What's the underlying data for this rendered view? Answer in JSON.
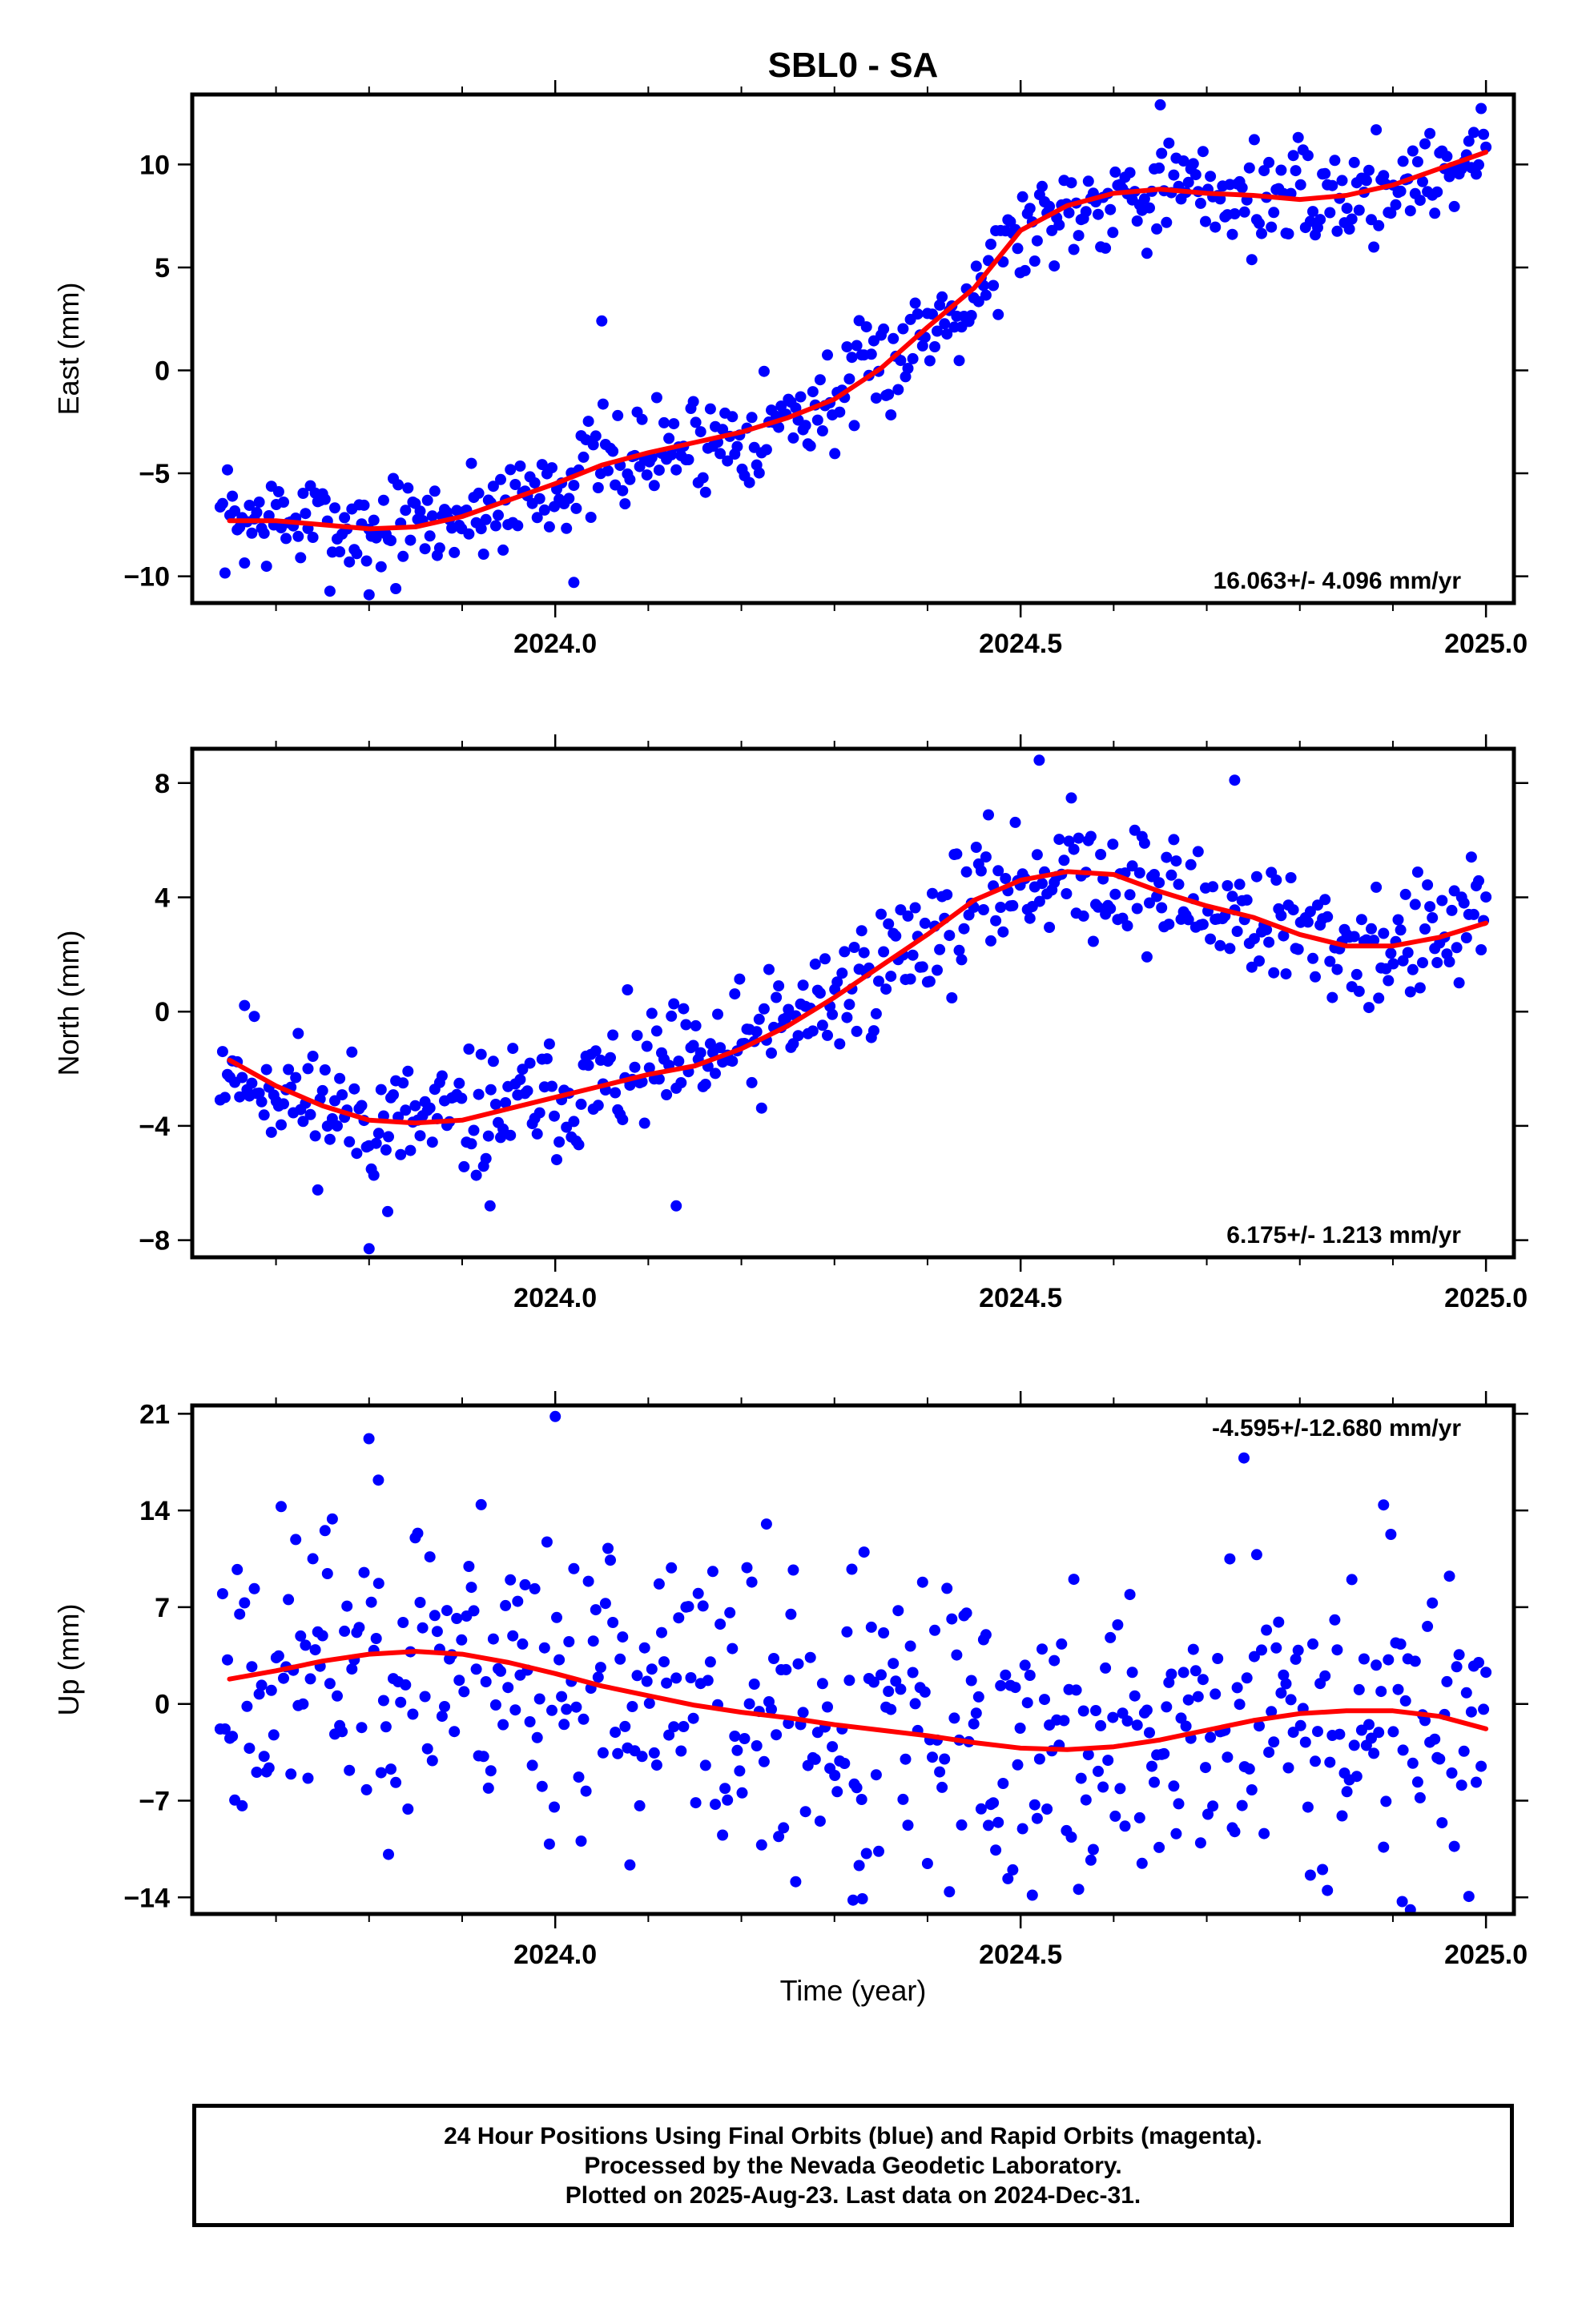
{
  "colors": {
    "final_orbits": "#0000ff",
    "rapid_orbits": "#ff00ff",
    "model_curve": "#ff0000",
    "frame": "#000000",
    "background": "#ffffff"
  },
  "chart_data": [
    {
      "type": "scatter",
      "title": "SBL0 - SA",
      "xlabel": "",
      "ylabel": "East (mm)",
      "unit": "mm",
      "xlim": [
        2023.61,
        2025.03
      ],
      "ylim": [
        -11.3,
        13.4
      ],
      "xticks": [
        "2024.0",
        "2024.5",
        "2025.0"
      ],
      "xtick_values": [
        2024.0,
        2024.5,
        2025.0
      ],
      "yticks": [
        "−10",
        "−5",
        "0",
        "5",
        "10"
      ],
      "ytick_values": [
        -10,
        -5,
        0,
        5,
        10
      ],
      "grid": false,
      "rate_text": "16.063+/- 4.096 mm/yr",
      "rate_position": "bottom-right",
      "model_curve": {
        "x": [
          2023.65,
          2023.7,
          2023.75,
          2023.8,
          2023.85,
          2023.9,
          2023.95,
          2024.0,
          2024.05,
          2024.1,
          2024.15,
          2024.2,
          2024.25,
          2024.3,
          2024.35,
          2024.4,
          2024.45,
          2024.5,
          2024.55,
          2024.6,
          2024.65,
          2024.7,
          2024.75,
          2024.8,
          2024.85,
          2024.9,
          2024.95,
          2025.0
        ],
        "y": [
          -7.3,
          -7.3,
          -7.5,
          -7.7,
          -7.6,
          -7.1,
          -6.3,
          -5.5,
          -4.6,
          -4.0,
          -3.5,
          -3.0,
          -2.3,
          -1.4,
          0.1,
          2.1,
          4.0,
          6.8,
          8.0,
          8.6,
          8.8,
          8.6,
          8.5,
          8.3,
          8.5,
          9.0,
          9.8,
          10.6
        ]
      },
      "points": {
        "n": 520,
        "seed": 7,
        "spread": 1.25,
        "outliers": [
          [
            2023.8,
            -10.9
          ],
          [
            2024.02,
            -10.3
          ],
          [
            2024.05,
            2.4
          ],
          [
            2024.65,
            12.9
          ]
        ]
      }
    },
    {
      "type": "scatter",
      "title": "",
      "xlabel": "",
      "ylabel": "North (mm)",
      "unit": "mm",
      "xlim": [
        2023.61,
        2025.03
      ],
      "ylim": [
        -8.6,
        9.2
      ],
      "xticks": [
        "2024.0",
        "2024.5",
        "2025.0"
      ],
      "xtick_values": [
        2024.0,
        2024.5,
        2025.0
      ],
      "yticks": [
        "−8",
        "−4",
        "0",
        "4",
        "8"
      ],
      "ytick_values": [
        -8,
        -4,
        0,
        4,
        8
      ],
      "grid": false,
      "rate_text": "6.175+/- 1.213 mm/yr",
      "rate_position": "bottom-right",
      "model_curve": {
        "x": [
          2023.65,
          2023.7,
          2023.75,
          2023.8,
          2023.85,
          2023.9,
          2023.95,
          2024.0,
          2024.05,
          2024.1,
          2024.15,
          2024.2,
          2024.25,
          2024.3,
          2024.35,
          2024.4,
          2024.45,
          2024.5,
          2024.55,
          2024.6,
          2024.65,
          2024.7,
          2024.75,
          2024.8,
          2024.85,
          2024.9,
          2024.95,
          2025.0
        ],
        "y": [
          -1.7,
          -2.6,
          -3.3,
          -3.8,
          -3.9,
          -3.8,
          -3.4,
          -3.0,
          -2.6,
          -2.2,
          -1.9,
          -1.3,
          -0.5,
          0.5,
          1.6,
          2.7,
          3.9,
          4.6,
          4.9,
          4.8,
          4.2,
          3.7,
          3.3,
          2.7,
          2.3,
          2.3,
          2.6,
          3.1
        ]
      },
      "points": {
        "n": 520,
        "seed": 11,
        "spread": 1.1,
        "outliers": [
          [
            2023.8,
            -8.3
          ],
          [
            2023.82,
            -7.0
          ],
          [
            2023.93,
            -6.8
          ],
          [
            2024.13,
            -6.8
          ],
          [
            2024.52,
            8.8
          ],
          [
            2024.73,
            8.1
          ]
        ]
      }
    },
    {
      "type": "scatter",
      "title": "",
      "xlabel": "Time (year)",
      "ylabel": "Up (mm)",
      "unit": "mm",
      "xlim": [
        2023.61,
        2025.03
      ],
      "ylim": [
        -15.2,
        21.6
      ],
      "xticks": [
        "2024.0",
        "2024.5",
        "2025.0"
      ],
      "xtick_values": [
        2024.0,
        2024.5,
        2025.0
      ],
      "yticks": [
        "−14",
        "−7",
        "0",
        "7",
        "14",
        "21"
      ],
      "ytick_values": [
        -14,
        -7,
        0,
        7,
        14,
        21
      ],
      "grid": false,
      "rate_text": "-4.595+/-12.680 mm/yr",
      "rate_position": "top-right",
      "model_curve": {
        "x": [
          2023.65,
          2023.7,
          2023.75,
          2023.8,
          2023.85,
          2023.9,
          2023.95,
          2024.0,
          2024.05,
          2024.1,
          2024.15,
          2024.2,
          2024.25,
          2024.3,
          2024.35,
          2024.4,
          2024.45,
          2024.5,
          2024.55,
          2024.6,
          2024.65,
          2024.7,
          2024.75,
          2024.8,
          2024.85,
          2024.9,
          2024.95,
          2025.0
        ],
        "y": [
          1.8,
          2.4,
          3.1,
          3.6,
          3.8,
          3.6,
          3.0,
          2.2,
          1.3,
          0.6,
          -0.1,
          -0.6,
          -1.0,
          -1.5,
          -1.9,
          -2.3,
          -2.8,
          -3.2,
          -3.3,
          -3.1,
          -2.6,
          -1.9,
          -1.2,
          -0.7,
          -0.5,
          -0.5,
          -0.9,
          -1.8
        ]
      },
      "points": {
        "n": 520,
        "seed": 23,
        "spread": 5.6,
        "outliers": [
          [
            2024.0,
            20.8
          ],
          [
            2024.74,
            17.8
          ],
          [
            2023.81,
            16.2
          ],
          [
            2024.89,
            14.4
          ],
          [
            2024.32,
            -14.2
          ],
          [
            2024.33,
            -14.1
          ],
          [
            2024.91,
            -14.3
          ]
        ]
      }
    }
  ],
  "footer": {
    "line1": "24 Hour Positions Using Final Orbits (blue) and Rapid Orbits (magenta).",
    "line2": "Processed by the Nevada Geodetic Laboratory.",
    "line3": "Plotted on 2025-Aug-23. Last data on 2024-Dec-31."
  }
}
